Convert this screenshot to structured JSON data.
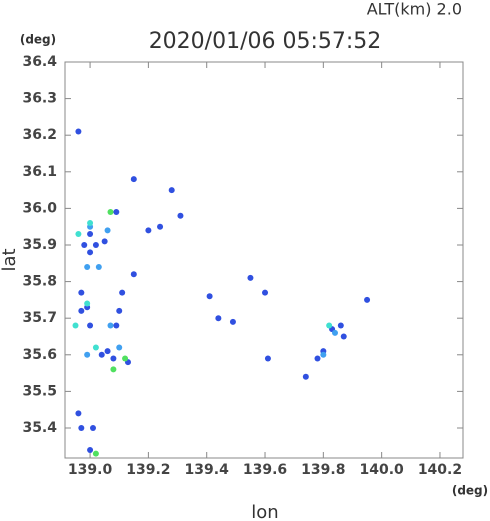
{
  "chart_data": {
    "type": "scatter",
    "title": "2020/01/06 05:57:52",
    "subtitle": "ALT(km)  2.0",
    "x_unit": "(deg)",
    "y_unit": "(deg)",
    "xlabel": "lon",
    "ylabel": "lat",
    "xlim": [
      138.914,
      140.279
    ],
    "ylim": [
      35.318,
      36.4
    ],
    "xticks": [
      {
        "value": 139,
        "label": "139.0"
      },
      139.2,
      139.4,
      139.6,
      139.8,
      {
        "value": 140,
        "label": "140.0"
      },
      140.2
    ],
    "yticks": [
      35.4,
      35.5,
      35.6,
      35.7,
      35.8,
      35.9,
      {
        "value": 36,
        "label": "36.0"
      },
      36.1,
      36.2,
      36.3,
      36.4
    ],
    "series": [
      {
        "color": "#3050e0",
        "x": [
          138.96,
          139.0,
          138.98,
          139.0,
          139.02,
          139.05,
          138.97,
          138.99,
          138.97,
          139.0,
          139.04,
          139.06,
          139.08,
          139.09,
          139.1,
          138.96,
          138.97,
          139.01,
          139.0,
          139.13,
          139.2,
          139.24,
          139.28,
          139.31,
          139.41,
          139.44,
          139.49,
          139.55,
          139.6,
          139.61,
          139.74,
          139.78,
          139.8,
          139.83,
          139.86,
          139.87,
          139.95,
          139.15,
          139.11,
          139.09,
          139.15
        ],
        "y": [
          36.21,
          35.93,
          35.9,
          35.88,
          35.9,
          35.91,
          35.77,
          35.73,
          35.72,
          35.68,
          35.6,
          35.61,
          35.59,
          35.68,
          35.72,
          35.44,
          35.4,
          35.4,
          35.34,
          35.58,
          35.94,
          35.95,
          36.05,
          35.98,
          35.76,
          35.7,
          35.69,
          35.81,
          35.77,
          35.59,
          35.54,
          35.59,
          35.61,
          35.67,
          35.68,
          35.65,
          35.75,
          36.08,
          35.77,
          35.99,
          35.82
        ]
      },
      {
        "color": "#40a0f0",
        "x": [
          139.0,
          138.99,
          139.03,
          139.07,
          139.06,
          139.8,
          139.84,
          138.99,
          139.1
        ],
        "y": [
          35.95,
          35.84,
          35.84,
          35.68,
          35.94,
          35.6,
          35.66,
          35.6,
          35.62
        ]
      },
      {
        "color": "#40e0d0",
        "x": [
          139.0,
          138.96,
          138.95,
          138.99,
          139.82,
          139.02
        ],
        "y": [
          35.96,
          35.93,
          35.68,
          35.74,
          35.68,
          35.62
        ]
      },
      {
        "color": "#50e060",
        "x": [
          139.08,
          139.02,
          139.12,
          139.07
        ],
        "y": [
          35.56,
          35.33,
          35.59,
          35.99
        ]
      }
    ]
  }
}
